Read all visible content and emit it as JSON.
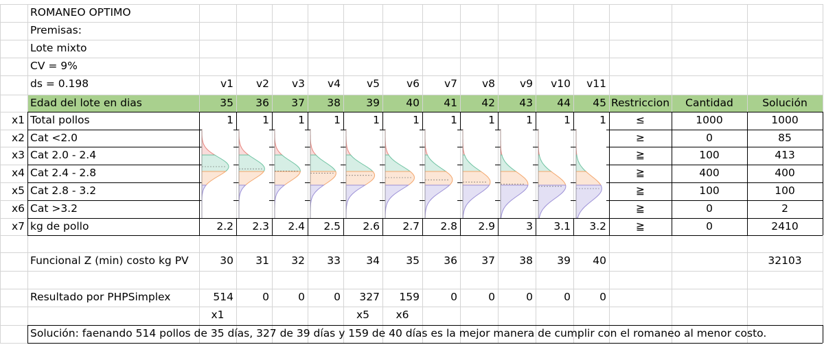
{
  "title": "ROMANEO OPTIMO",
  "premises": [
    "Premisas:",
    "Lote mixto",
    "CV = 9%",
    "ds = 0.198"
  ],
  "var_headers": [
    "v1",
    "v2",
    "v3",
    "v4",
    "v5",
    "v6",
    "v7",
    "v8",
    "v9",
    "v10",
    "v11"
  ],
  "age_row": {
    "label": "Edad del lote en dias",
    "values": [
      "35",
      "36",
      "37",
      "38",
      "39",
      "40",
      "41",
      "42",
      "43",
      "44",
      "45"
    ],
    "col_restriccion": "Restriccion",
    "col_cantidad": "Cantidad",
    "col_solucion": "Solución"
  },
  "constraint_rows": [
    {
      "var": "x1",
      "label": "Total pollos",
      "values": [
        "1",
        "1",
        "1",
        "1",
        "1",
        "1",
        "1",
        "1",
        "1",
        "1",
        "1"
      ],
      "sign": "≤",
      "cantidad": "1000",
      "solucion": "1000"
    },
    {
      "var": "x2",
      "label": "Cat <2.0",
      "values": [],
      "sign": "≥",
      "cantidad": "0",
      "solucion": "85"
    },
    {
      "var": "x3",
      "label": "Cat 2.0 - 2.4",
      "values": [],
      "sign": "≧",
      "cantidad": "100",
      "solucion": "413"
    },
    {
      "var": "x4",
      "label": "Cat 2.4 - 2.8",
      "values": [],
      "sign": "≧",
      "cantidad": "400",
      "solucion": "400"
    },
    {
      "var": "x5",
      "label": "Cat 2.8 - 3.2",
      "values": [],
      "sign": "≧",
      "cantidad": "100",
      "solucion": "100"
    },
    {
      "var": "x6",
      "label": "Cat >3.2",
      "values": [],
      "sign": "≧",
      "cantidad": "0",
      "solucion": "2"
    },
    {
      "var": "x7",
      "label": "kg de pollo",
      "values": [
        "2.2",
        "2.3",
        "2.4",
        "2.5",
        "2.6",
        "2.7",
        "2.8",
        "2.9",
        "3",
        "3.1",
        "3.2"
      ],
      "sign": "≧",
      "cantidad": "0",
      "solucion": "2410"
    }
  ],
  "objective": {
    "label": "Funcional Z (min) costo kg PV",
    "values": [
      "30",
      "31",
      "32",
      "33",
      "34",
      "35",
      "36",
      "37",
      "38",
      "39",
      "40"
    ],
    "solucion": "32103"
  },
  "result": {
    "label": "Resultado por PHPSimplex",
    "values": [
      "514",
      "0",
      "0",
      "0",
      "327",
      "159",
      "0",
      "0",
      "0",
      "0",
      "0"
    ],
    "tags": [
      "x1",
      "",
      "",
      "",
      "x5",
      "x6",
      "",
      "",
      "",
      "",
      ""
    ]
  },
  "conclusion": "Solución: faenando 514 pollos de 35 días, 327 de 39 días y 159 de 40 días es la mejor manera de cumplir con el romaneo al menor costo.",
  "colors": {
    "header_green": "#a9d08e",
    "curve_red": "#e8837c",
    "curve_green": "#6cc2a0",
    "curve_orange": "#f4a56a",
    "curve_purple": "#9b8fd6"
  }
}
